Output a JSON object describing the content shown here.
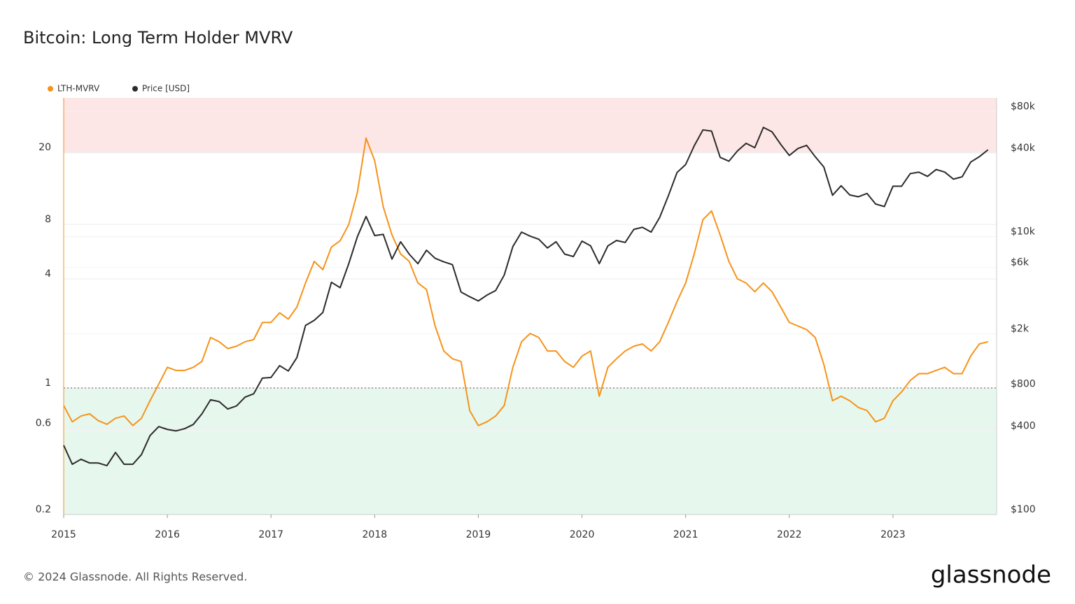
{
  "chart_data": {
    "type": "line",
    "title": "Bitcoin: Long Term Holder MVRV",
    "log_scale": true,
    "grid": true,
    "x": [
      2015.0,
      2015.083,
      2015.167,
      2015.25,
      2015.333,
      2015.417,
      2015.5,
      2015.583,
      2015.667,
      2015.75,
      2015.833,
      2015.917,
      2016.0,
      2016.083,
      2016.167,
      2016.25,
      2016.333,
      2016.417,
      2016.5,
      2016.583,
      2016.667,
      2016.75,
      2016.833,
      2016.917,
      2017.0,
      2017.083,
      2017.167,
      2017.25,
      2017.333,
      2017.417,
      2017.5,
      2017.583,
      2017.667,
      2017.75,
      2017.833,
      2017.917,
      2018.0,
      2018.083,
      2018.167,
      2018.25,
      2018.333,
      2018.417,
      2018.5,
      2018.583,
      2018.667,
      2018.75,
      2018.833,
      2018.917,
      2019.0,
      2019.083,
      2019.167,
      2019.25,
      2019.333,
      2019.417,
      2019.5,
      2019.583,
      2019.667,
      2019.75,
      2019.833,
      2019.917,
      2020.0,
      2020.083,
      2020.167,
      2020.25,
      2020.333,
      2020.417,
      2020.5,
      2020.583,
      2020.667,
      2020.75,
      2020.833,
      2020.917,
      2021.0,
      2021.083,
      2021.167,
      2021.25,
      2021.333,
      2021.417,
      2021.5,
      2021.583,
      2021.667,
      2021.75,
      2021.833,
      2021.917,
      2022.0,
      2022.083,
      2022.167,
      2022.25,
      2022.333,
      2022.417,
      2022.5,
      2022.583,
      2022.667,
      2022.75,
      2022.833,
      2022.917,
      2023.0,
      2023.083,
      2023.167,
      2023.25,
      2023.333,
      2023.417,
      2023.5,
      2023.583,
      2023.667,
      2023.75,
      2023.833,
      2023.917
    ],
    "series": [
      {
        "name": "LTH-MVRV",
        "color": "#f7931a",
        "values": [
          0.8,
          0.65,
          0.7,
          0.72,
          0.66,
          0.63,
          0.68,
          0.7,
          0.62,
          0.68,
          0.85,
          1.05,
          1.3,
          1.25,
          1.25,
          1.3,
          1.4,
          1.9,
          1.8,
          1.65,
          1.7,
          1.8,
          1.85,
          2.3,
          2.3,
          2.6,
          2.4,
          2.8,
          3.8,
          5.0,
          4.5,
          6.0,
          6.5,
          8.0,
          12,
          24,
          18,
          10,
          7,
          5.5,
          5,
          3.8,
          3.5,
          2.2,
          1.6,
          1.45,
          1.4,
          0.75,
          0.62,
          0.65,
          0.7,
          0.8,
          1.3,
          1.8,
          2.0,
          1.9,
          1.6,
          1.6,
          1.4,
          1.3,
          1.5,
          1.6,
          0.9,
          1.3,
          1.45,
          1.6,
          1.7,
          1.75,
          1.6,
          1.8,
          2.3,
          3.0,
          3.8,
          5.5,
          8.5,
          9.5,
          7.0,
          5.0,
          4.0,
          3.8,
          3.4,
          3.8,
          3.4,
          2.8,
          2.3,
          2.2,
          2.1,
          1.9,
          1.35,
          0.85,
          0.9,
          0.85,
          0.78,
          0.75,
          0.65,
          0.68,
          0.85,
          0.95,
          1.1,
          1.2,
          1.2,
          1.25,
          1.3,
          1.2,
          1.2,
          1.5,
          1.75,
          1.8
        ]
      },
      {
        "name": "Price [USD]",
        "color": "#2b2b2b",
        "axis": "y2",
        "values": [
          315,
          230,
          250,
          235,
          235,
          225,
          280,
          230,
          230,
          270,
          370,
          430,
          410,
          400,
          415,
          445,
          530,
          670,
          650,
          575,
          605,
          700,
          740,
          960,
          970,
          1180,
          1080,
          1350,
          2300,
          2500,
          2850,
          4700,
          4300,
          6400,
          10000,
          14000,
          10200,
          10400,
          6900,
          9200,
          7500,
          6400,
          8000,
          7000,
          6600,
          6300,
          4000,
          3700,
          3450,
          3800,
          4100,
          5300,
          8500,
          10800,
          10100,
          9600,
          8300,
          9200,
          7500,
          7200,
          9300,
          8600,
          6400,
          8600,
          9400,
          9100,
          11300,
          11700,
          10800,
          13800,
          19700,
          29000,
          33100,
          45200,
          58800,
          57700,
          37300,
          35000,
          41500,
          47100,
          43800,
          61300,
          57000,
          46300,
          38500,
          43200,
          45500,
          37700,
          31800,
          19900,
          23300,
          20000,
          19400,
          20500,
          17200,
          16500,
          23100,
          23100,
          28500,
          29200,
          27200,
          30500,
          29200,
          26000,
          27000,
          34500,
          37700,
          42300
        ]
      }
    ],
    "xlim": [
      2015,
      2024
    ],
    "xticks": [
      2015,
      2016,
      2017,
      2018,
      2019,
      2020,
      2021,
      2022,
      2023
    ],
    "ylim": [
      0.2,
      40
    ],
    "yticks": [
      0.2,
      0.6,
      1,
      4,
      8,
      20
    ],
    "y2lim": [
      100,
      100000
    ],
    "y2ticks": [
      {
        "value": 100,
        "label": "$100"
      },
      {
        "value": 400,
        "label": "$400"
      },
      {
        "value": 800,
        "label": "$800"
      },
      {
        "value": 2000,
        "label": "$2k"
      },
      {
        "value": 6000,
        "label": "$6k"
      },
      {
        "value": 10000,
        "label": "$10k"
      },
      {
        "value": 40000,
        "label": "$40k"
      },
      {
        "value": 80000,
        "label": "$80k"
      }
    ],
    "high_threshold": 20,
    "high_color": "#fde6e6",
    "low_threshold": 1,
    "low_color": "#e6f7ee",
    "footer": "© 2024 Glassnode. All Rights Reserved.",
    "brand": "glassnode"
  }
}
